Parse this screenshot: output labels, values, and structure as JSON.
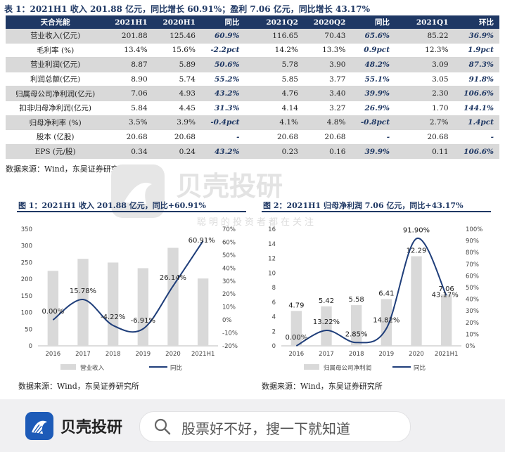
{
  "table": {
    "title": "表 1：2021H1 收入 201.88 亿元，同比增长 60.91%；盈利 7.06 亿元，同比增长 43.17%",
    "headers": [
      "天合光能",
      "2021H1",
      "2020H1",
      "同比",
      "2021Q2",
      "2020Q2",
      "同比",
      "2021Q1",
      "环比"
    ],
    "rows": [
      [
        "营业收入(亿元)",
        "201.88",
        "125.46",
        "60.9%",
        "116.65",
        "70.43",
        "65.6%",
        "85.22",
        "36.9%"
      ],
      [
        "毛利率 (%)",
        "13.4%",
        "15.6%",
        "-2.2pct",
        "14.2%",
        "13.3%",
        "0.9pct",
        "12.3%",
        "1.9pct"
      ],
      [
        "营业利润(亿元)",
        "8.87",
        "5.89",
        "50.6%",
        "5.78",
        "3.90",
        "48.2%",
        "3.09",
        "87.3%"
      ],
      [
        "利润总额(亿元)",
        "8.90",
        "5.74",
        "55.2%",
        "5.85",
        "3.77",
        "55.1%",
        "3.05",
        "91.8%"
      ],
      [
        "归属母公司净利润(亿元)",
        "7.06",
        "4.93",
        "43.2%",
        "4.76",
        "3.40",
        "39.9%",
        "2.30",
        "106.6%"
      ],
      [
        "扣非归母净利润(亿元)",
        "5.84",
        "4.45",
        "31.3%",
        "4.14",
        "3.27",
        "26.9%",
        "1.70",
        "144.1%"
      ],
      [
        "归母净利率 (%)",
        "3.5%",
        "3.9%",
        "-0.4pct",
        "4.1%",
        "4.8%",
        "-0.8pct",
        "2.7%",
        "1.4pct"
      ],
      [
        "股本 (亿股)",
        "20.68",
        "20.68",
        "-",
        "20.68",
        "20.68",
        "-",
        "20.68",
        "-"
      ],
      [
        "EPS (元/股)",
        "0.34",
        "0.24",
        "43.2%",
        "0.23",
        "0.16",
        "39.9%",
        "0.11",
        "106.6%"
      ]
    ],
    "source": "数据来源：Wind，东吴证券研究所"
  },
  "watermark": {
    "title": "贝壳投研",
    "slogan": "聪明的投资者都在关注"
  },
  "chart_data": [
    {
      "type": "bar",
      "title": "图 1：2021H1 收入 201.88 亿元，同比+60.91%",
      "categories": [
        "2016",
        "2017",
        "2018",
        "2019",
        "2020",
        "2021H1"
      ],
      "series": [
        {
          "name": "营业收入",
          "type": "bar",
          "axis": "left",
          "color": "#d9d9d9",
          "values": [
            225,
            261,
            250,
            233,
            294,
            202
          ]
        },
        {
          "name": "同比",
          "type": "line",
          "axis": "right",
          "color": "#1f3e7a",
          "values": [
            0.0,
            15.78,
            -4.22,
            -6.91,
            26.14,
            60.91
          ]
        }
      ],
      "point_labels": [
        "0.00%",
        "15.78%",
        "-4.22%",
        "-6.91%",
        "26.14%",
        "60.91%"
      ],
      "left_axis": {
        "min": 0,
        "max": 350,
        "ticks": [
          "0",
          "50",
          "100",
          "150",
          "200",
          "250",
          "300",
          "350"
        ]
      },
      "right_axis": {
        "min": -20,
        "max": 70,
        "ticks": [
          "-20%",
          "-10%",
          "0%",
          "10%",
          "20%",
          "30%",
          "40%",
          "50%",
          "60%",
          "70%"
        ]
      },
      "grid": false,
      "legend": "bottom",
      "source": "数据来源：Wind，东吴证券研究所"
    },
    {
      "type": "bar",
      "title": "图 2：2021H1 归母净利润 7.06 亿元，同比+43.17%",
      "categories": [
        "2016",
        "2017",
        "2018",
        "2019",
        "2020",
        "2021H1"
      ],
      "series": [
        {
          "name": "归属母公司净利润",
          "type": "bar",
          "axis": "left",
          "color": "#d9d9d9",
          "values": [
            4.79,
            5.42,
            5.58,
            6.41,
            12.29,
            7.06
          ]
        },
        {
          "name": "同比",
          "type": "line",
          "axis": "right",
          "color": "#1f3e7a",
          "values": [
            0.0,
            13.22,
            2.85,
            14.82,
            91.9,
            43.17
          ]
        }
      ],
      "bar_labels": [
        "4.79",
        "5.42",
        "5.58",
        "6.41",
        "12.29",
        "7.06"
      ],
      "point_labels": [
        "0.00%",
        "13.22%",
        "2.85%",
        "14.82%",
        "91.90%",
        "43.17%"
      ],
      "left_axis": {
        "min": 0,
        "max": 16,
        "ticks": [
          "0",
          "2",
          "4",
          "6",
          "8",
          "10",
          "12",
          "14",
          "16"
        ]
      },
      "right_axis": {
        "min": 0,
        "max": 100,
        "ticks": [
          "0%",
          "10%",
          "20%",
          "30%",
          "40%",
          "50%",
          "60%",
          "70%",
          "80%",
          "90%",
          "100%"
        ]
      },
      "grid": false,
      "legend": "bottom",
      "source": "数据来源：Wind，东吴证券研究所"
    }
  ],
  "footer": {
    "brand": "贝壳投研",
    "search_placeholder": "股票好不好，搜一下就知道"
  }
}
